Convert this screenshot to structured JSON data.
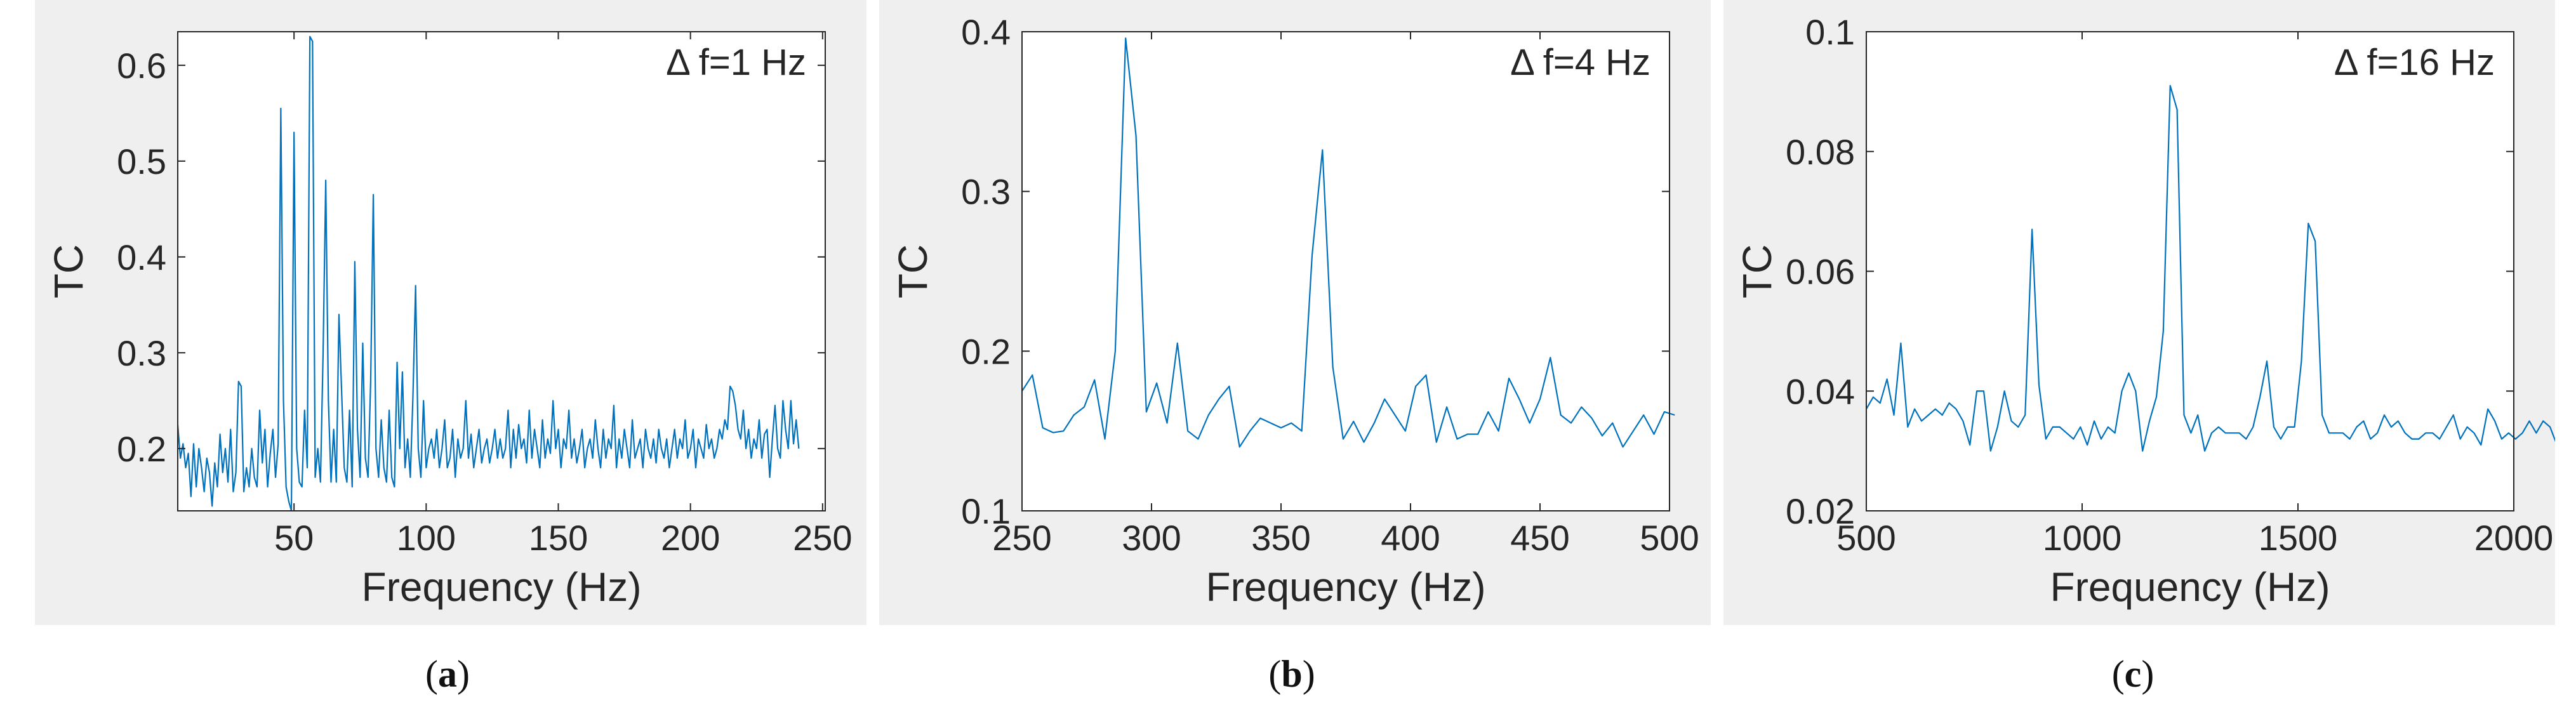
{
  "chart_data": [
    {
      "type": "line",
      "caption": "a",
      "annotation": "Δ f=1 Hz",
      "xlabel": "Frequency (Hz)",
      "ylabel": "TC",
      "xlim": [
        6,
        251
      ],
      "ylim": [
        0.135,
        0.635
      ],
      "xticks": [
        50,
        100,
        150,
        200,
        250
      ],
      "yticks": [
        0.2,
        0.3,
        0.4,
        0.5,
        0.6
      ],
      "grid": false,
      "color": "#0072BD",
      "x_start": 6,
      "x_step": 1,
      "y": [
        0.225,
        0.19,
        0.205,
        0.18,
        0.195,
        0.15,
        0.205,
        0.16,
        0.2,
        0.18,
        0.155,
        0.19,
        0.175,
        0.14,
        0.185,
        0.16,
        0.215,
        0.175,
        0.2,
        0.165,
        0.22,
        0.155,
        0.175,
        0.27,
        0.265,
        0.155,
        0.18,
        0.16,
        0.2,
        0.17,
        0.16,
        0.24,
        0.185,
        0.22,
        0.16,
        0.195,
        0.22,
        0.17,
        0.205,
        0.555,
        0.25,
        0.16,
        0.145,
        0.135,
        0.53,
        0.2,
        0.165,
        0.16,
        0.24,
        0.18,
        0.63,
        0.625,
        0.17,
        0.2,
        0.165,
        0.3,
        0.48,
        0.25,
        0.165,
        0.22,
        0.165,
        0.34,
        0.26,
        0.18,
        0.165,
        0.24,
        0.16,
        0.395,
        0.22,
        0.17,
        0.31,
        0.19,
        0.17,
        0.27,
        0.465,
        0.2,
        0.17,
        0.23,
        0.18,
        0.165,
        0.24,
        0.17,
        0.16,
        0.29,
        0.2,
        0.28,
        0.18,
        0.21,
        0.17,
        0.255,
        0.37,
        0.2,
        0.17,
        0.25,
        0.18,
        0.2,
        0.21,
        0.19,
        0.22,
        0.18,
        0.2,
        0.23,
        0.18,
        0.19,
        0.22,
        0.17,
        0.21,
        0.19,
        0.2,
        0.25,
        0.19,
        0.215,
        0.18,
        0.2,
        0.22,
        0.185,
        0.2,
        0.21,
        0.185,
        0.2,
        0.22,
        0.19,
        0.21,
        0.19,
        0.2,
        0.24,
        0.18,
        0.22,
        0.19,
        0.225,
        0.2,
        0.21,
        0.185,
        0.24,
        0.19,
        0.22,
        0.2,
        0.18,
        0.23,
        0.19,
        0.21,
        0.195,
        0.25,
        0.2,
        0.22,
        0.18,
        0.21,
        0.2,
        0.24,
        0.19,
        0.21,
        0.185,
        0.2,
        0.22,
        0.18,
        0.2,
        0.21,
        0.19,
        0.23,
        0.2,
        0.18,
        0.22,
        0.19,
        0.21,
        0.2,
        0.245,
        0.18,
        0.21,
        0.19,
        0.22,
        0.2,
        0.18,
        0.23,
        0.19,
        0.2,
        0.21,
        0.18,
        0.22,
        0.2,
        0.19,
        0.21,
        0.185,
        0.22,
        0.2,
        0.19,
        0.21,
        0.18,
        0.2,
        0.22,
        0.19,
        0.21,
        0.2,
        0.23,
        0.19,
        0.2,
        0.22,
        0.18,
        0.21,
        0.2,
        0.19,
        0.225,
        0.2,
        0.21,
        0.19,
        0.2,
        0.22,
        0.21,
        0.23,
        0.22,
        0.265,
        0.26,
        0.245,
        0.22,
        0.21,
        0.24,
        0.2,
        0.22,
        0.19,
        0.21,
        0.2,
        0.23,
        0.19,
        0.215,
        0.22,
        0.17,
        0.21,
        0.245,
        0.2,
        0.19,
        0.25,
        0.22,
        0.2,
        0.25,
        0.205,
        0.23,
        0.2
      ]
    },
    {
      "type": "line",
      "caption": "b",
      "annotation": "Δ f=4 Hz",
      "xlabel": "Frequency (Hz)",
      "ylabel": "TC",
      "xlim": [
        250,
        500
      ],
      "ylim": [
        0.1,
        0.4
      ],
      "xticks": [
        250,
        300,
        350,
        400,
        450,
        500
      ],
      "yticks": [
        0.1,
        0.2,
        0.3,
        0.4
      ],
      "grid": false,
      "color": "#0072BD",
      "x_start": 250,
      "x_step": 4,
      "y": [
        0.175,
        0.185,
        0.152,
        0.149,
        0.15,
        0.16,
        0.165,
        0.182,
        0.145,
        0.2,
        0.396,
        0.335,
        0.162,
        0.18,
        0.155,
        0.205,
        0.15,
        0.145,
        0.16,
        0.17,
        0.178,
        0.14,
        0.15,
        0.158,
        0.155,
        0.152,
        0.155,
        0.15,
        0.26,
        0.326,
        0.19,
        0.145,
        0.156,
        0.143,
        0.155,
        0.17,
        0.16,
        0.15,
        0.178,
        0.185,
        0.143,
        0.165,
        0.145,
        0.148,
        0.148,
        0.162,
        0.15,
        0.183,
        0.17,
        0.155,
        0.17,
        0.196,
        0.16,
        0.155,
        0.165,
        0.158,
        0.147,
        0.155,
        0.14,
        0.15,
        0.16,
        0.148,
        0.162,
        0.16
      ]
    },
    {
      "type": "line",
      "caption": "c",
      "annotation": "Δ f=16 Hz",
      "xlabel": "Frequency (Hz)",
      "ylabel": "TC",
      "xlim": [
        500,
        2000
      ],
      "ylim": [
        0.02,
        0.1
      ],
      "xticks": [
        500,
        1000,
        1500,
        2000
      ],
      "yticks": [
        0.02,
        0.04,
        0.06,
        0.08,
        0.1
      ],
      "grid": false,
      "color": "#0072BD",
      "x_start": 500,
      "x_step": 16,
      "y": [
        0.037,
        0.039,
        0.038,
        0.042,
        0.036,
        0.048,
        0.034,
        0.037,
        0.035,
        0.036,
        0.037,
        0.036,
        0.038,
        0.037,
        0.035,
        0.031,
        0.04,
        0.04,
        0.03,
        0.034,
        0.04,
        0.035,
        0.034,
        0.036,
        0.067,
        0.041,
        0.032,
        0.034,
        0.034,
        0.033,
        0.032,
        0.034,
        0.031,
        0.035,
        0.032,
        0.034,
        0.033,
        0.04,
        0.043,
        0.04,
        0.03,
        0.035,
        0.039,
        0.05,
        0.091,
        0.087,
        0.036,
        0.033,
        0.036,
        0.03,
        0.033,
        0.034,
        0.033,
        0.033,
        0.033,
        0.032,
        0.034,
        0.039,
        0.045,
        0.034,
        0.032,
        0.034,
        0.034,
        0.045,
        0.068,
        0.065,
        0.036,
        0.033,
        0.033,
        0.033,
        0.032,
        0.034,
        0.035,
        0.032,
        0.033,
        0.036,
        0.034,
        0.035,
        0.033,
        0.032,
        0.032,
        0.033,
        0.033,
        0.032,
        0.034,
        0.036,
        0.032,
        0.034,
        0.033,
        0.031,
        0.037,
        0.035,
        0.032,
        0.033,
        0.032,
        0.033,
        0.035,
        0.033,
        0.035,
        0.034,
        0.031
      ]
    }
  ]
}
